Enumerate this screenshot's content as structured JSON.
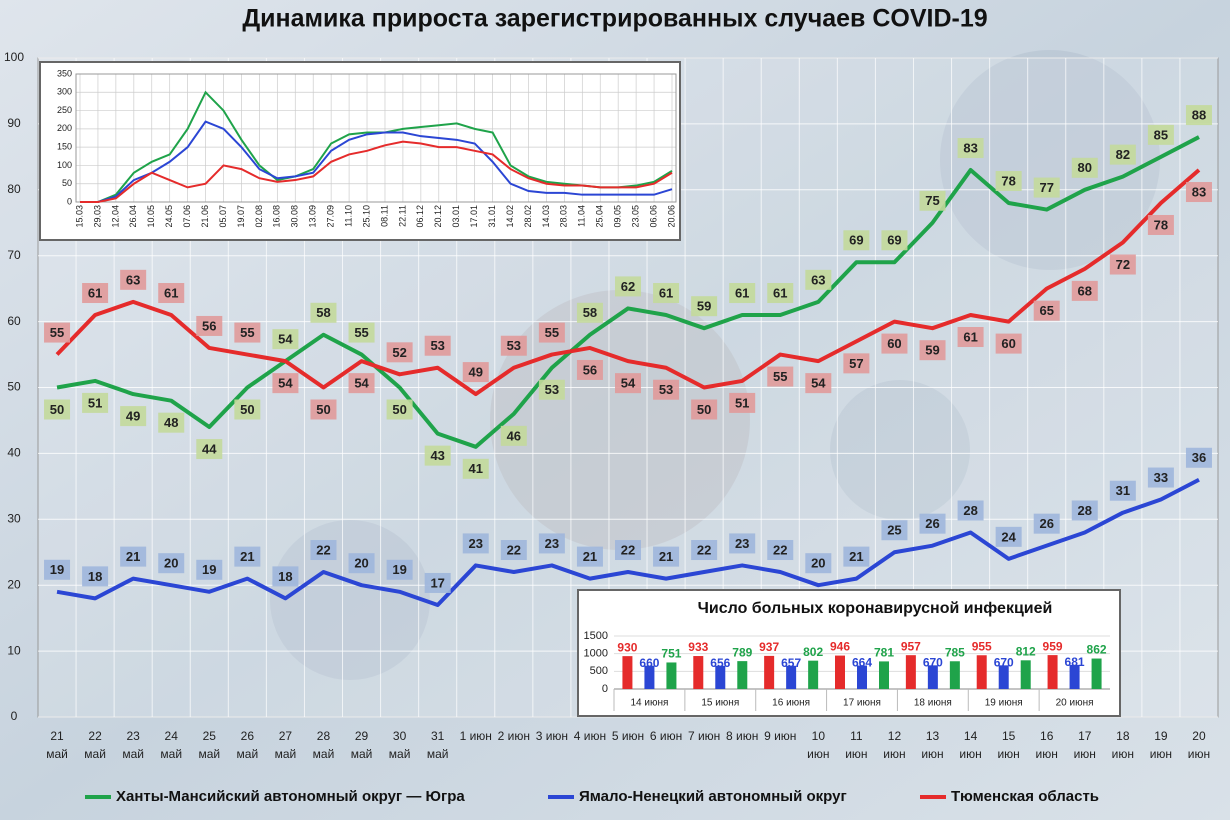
{
  "chart_data": [
    {
      "type": "line",
      "title": "Динамика прироста зарегистрированных случаев COVID-19",
      "categories": [
        [
          "21",
          "май"
        ],
        [
          "22",
          "май"
        ],
        [
          "23",
          "май"
        ],
        [
          "24",
          "май"
        ],
        [
          "25",
          "май"
        ],
        [
          "26",
          "май"
        ],
        [
          "27",
          "май"
        ],
        [
          "28",
          "май"
        ],
        [
          "29",
          "май"
        ],
        [
          "30",
          "май"
        ],
        [
          "31",
          "май"
        ],
        [
          "1 июн"
        ],
        [
          "2 июн"
        ],
        [
          "3 июн"
        ],
        [
          "4 июн"
        ],
        [
          "5 июн"
        ],
        [
          "6 июн"
        ],
        [
          "7 июн"
        ],
        [
          "8 июн"
        ],
        [
          "9 июн"
        ],
        [
          "10",
          "июн"
        ],
        [
          "11",
          "июн"
        ],
        [
          "12",
          "июн"
        ],
        [
          "13",
          "июн"
        ],
        [
          "14",
          "июн"
        ],
        [
          "15",
          "июн"
        ],
        [
          "16",
          "июн"
        ],
        [
          "17",
          "июн"
        ],
        [
          "18",
          "июн"
        ],
        [
          "19",
          "июн"
        ],
        [
          "20",
          "июн"
        ]
      ],
      "series": [
        {
          "name": "Ханты-Мансийский автономный округ — Югра",
          "color": "#1fa34a",
          "label_color": "#c3d99b",
          "values": [
            50,
            51,
            49,
            48,
            44,
            50,
            54,
            58,
            55,
            50,
            43,
            41,
            46,
            53,
            58,
            62,
            61,
            59,
            61,
            61,
            63,
            69,
            69,
            75,
            83,
            78,
            77,
            80,
            82,
            85,
            88
          ]
        },
        {
          "name": "Ямало-Ненецкий автономный округ",
          "color": "#2b46d4",
          "label_color": "#9fb6dc",
          "values": [
            19,
            18,
            21,
            20,
            19,
            21,
            18,
            22,
            20,
            19,
            17,
            23,
            22,
            23,
            21,
            22,
            21,
            22,
            23,
            22,
            20,
            21,
            25,
            26,
            28,
            24,
            26,
            28,
            31,
            33,
            36
          ]
        },
        {
          "name": "Тюменская область",
          "color": "#e52b2b",
          "label_color": "#e09a9a",
          "values": [
            55,
            61,
            63,
            61,
            56,
            55,
            54,
            50,
            54,
            52,
            53,
            49,
            53,
            55,
            56,
            54,
            53,
            50,
            51,
            55,
            54,
            57,
            60,
            59,
            61,
            60,
            65,
            68,
            72,
            78,
            83
          ]
        }
      ],
      "ylim": [
        0,
        100
      ],
      "yticks": [
        0,
        10,
        20,
        30,
        40,
        50,
        60,
        70,
        80,
        90,
        100
      ],
      "grid": true
    },
    {
      "type": "line",
      "categories": [
        "15.03",
        "29.03",
        "12.04",
        "26.04",
        "10.05",
        "24.05",
        "07.06",
        "21.06",
        "05.07",
        "19.07",
        "02.08",
        "16.08",
        "30.08",
        "13.09",
        "27.09",
        "11.10",
        "25.10",
        "08.11",
        "22.11",
        "06.12",
        "20.12",
        "03.01",
        "17.01",
        "31.01",
        "14.02",
        "28.02",
        "14.03",
        "28.03",
        "11.04",
        "25.04",
        "09.05",
        "23.05",
        "06.06",
        "20.06"
      ],
      "series": [
        {
          "color": "#1fa34a",
          "values": [
            0,
            0,
            20,
            80,
            110,
            130,
            200,
            300,
            250,
            170,
            100,
            60,
            70,
            90,
            160,
            185,
            190,
            190,
            200,
            205,
            210,
            215,
            200,
            190,
            100,
            70,
            55,
            50,
            45,
            40,
            40,
            45,
            55,
            85
          ]
        },
        {
          "color": "#2b46d4",
          "values": [
            0,
            0,
            15,
            60,
            80,
            110,
            150,
            220,
            200,
            150,
            90,
            65,
            70,
            80,
            140,
            170,
            185,
            190,
            190,
            180,
            175,
            170,
            160,
            110,
            50,
            30,
            25,
            25,
            20,
            20,
            20,
            20,
            20,
            35
          ]
        },
        {
          "color": "#e52b2b",
          "values": [
            0,
            0,
            10,
            50,
            80,
            60,
            40,
            50,
            100,
            90,
            65,
            55,
            60,
            70,
            110,
            130,
            140,
            155,
            165,
            160,
            150,
            150,
            140,
            130,
            90,
            65,
            50,
            45,
            45,
            40,
            40,
            40,
            50,
            80
          ]
        }
      ],
      "ylim": [
        0,
        350
      ],
      "yticks": [
        0,
        50,
        100,
        150,
        200,
        250,
        300,
        350
      ],
      "grid": true
    },
    {
      "type": "bar",
      "title": "Число больных коронавирусной инфекцией",
      "categories": [
        "14 июня",
        "15 июня",
        "16 июня",
        "17 июня",
        "18 июня",
        "19 июня",
        "20 июня"
      ],
      "series": [
        {
          "color": "#e52b2b",
          "values": [
            930,
            933,
            937,
            946,
            957,
            955,
            959
          ]
        },
        {
          "color": "#2b46d4",
          "values": [
            660,
            656,
            657,
            664,
            670,
            670,
            681
          ]
        },
        {
          "color": "#1fa34a",
          "values": [
            751,
            789,
            802,
            781,
            785,
            812,
            862
          ]
        }
      ],
      "ylim": [
        0,
        1500
      ],
      "yticks": [
        0,
        500,
        1000,
        1500
      ],
      "grid": true
    }
  ]
}
